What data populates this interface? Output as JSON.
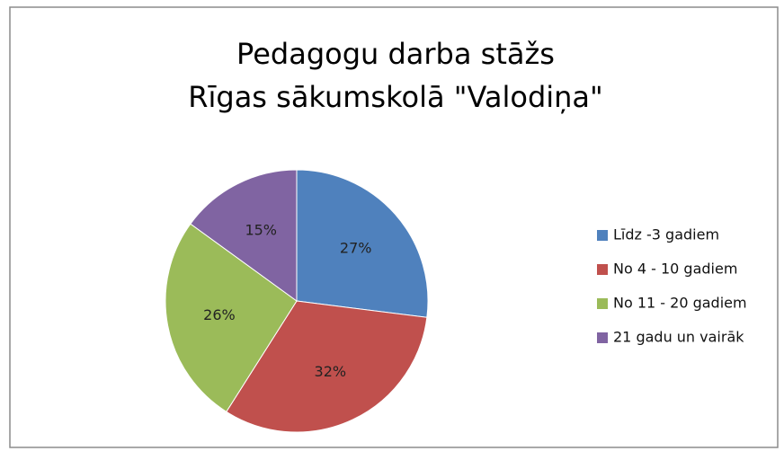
{
  "chart_data": {
    "type": "pie",
    "title": [
      "Pedagogu darba stāžs",
      "Rīgas sākumskolā \"Valodiņa\""
    ],
    "categories": [
      "Līdz -3 gadiem",
      "No 4 - 10 gadiem",
      "No 11 - 20 gadiem",
      "21 gadu un vairāk"
    ],
    "values": [
      27,
      32,
      26,
      15
    ],
    "value_labels": [
      "27%",
      "32%",
      "26%",
      "15%"
    ],
    "colors": [
      "#4f81bd",
      "#c0504d",
      "#9bbb59",
      "#8064a2"
    ],
    "legend": "right"
  }
}
